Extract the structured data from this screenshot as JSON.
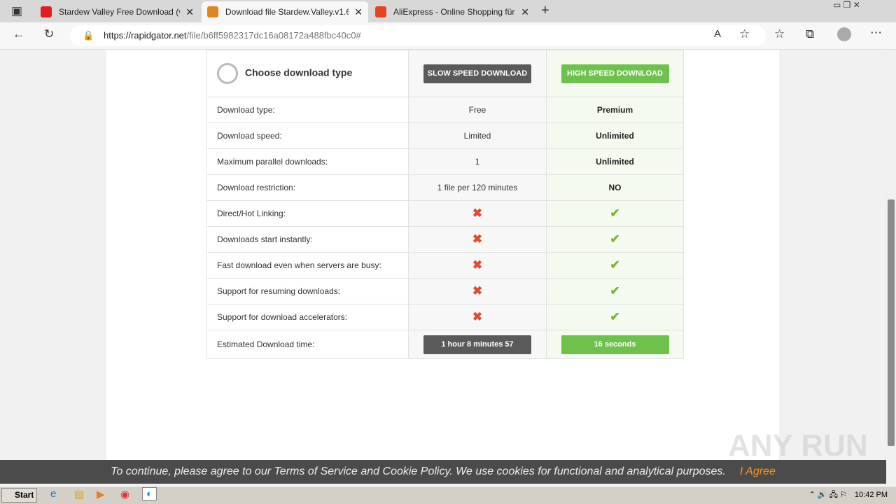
{
  "browser": {
    "tabs": [
      {
        "title": "Stardew Valley Free Download (v",
        "color": "#e02020"
      },
      {
        "title": "Download file Stardew.Valley.v1.6",
        "color": "#e0861f",
        "active": true
      },
      {
        "title": "AliExpress - Online Shopping für",
        "color": "#e8431e"
      }
    ],
    "url_domain": "https://rapidgator.net",
    "url_path": "/file/b6ff5982317dc16a08172a488fbc40c0#"
  },
  "table": {
    "header": "Choose download type",
    "slow_button": "SLOW SPEED DOWNLOAD",
    "fast_button": "HIGH SPEED DOWNLOAD",
    "rows": [
      {
        "label": "Download type:",
        "free": "Free",
        "premium": "Premium"
      },
      {
        "label": "Download speed:",
        "free": "Limited",
        "premium": "Unlimited"
      },
      {
        "label": "Maximum parallel downloads:",
        "free": "1",
        "premium": "Unlimited"
      },
      {
        "label": "Download restriction:",
        "free": "1 file per 120 minutes",
        "premium": "NO"
      },
      {
        "label": "Direct/Hot Linking:",
        "free": "✖",
        "premium": "✔"
      },
      {
        "label": "Downloads start instantly:",
        "free": "✖",
        "premium": "✔"
      },
      {
        "label": "Fast download even when servers are busy:",
        "free": "✖",
        "premium": "✔"
      },
      {
        "label": "Support for resuming downloads:",
        "free": "✖",
        "premium": "✔"
      },
      {
        "label": "Support for download accelerators:",
        "free": "✖",
        "premium": "✔"
      }
    ],
    "time_label": "Estimated Download time:",
    "slow_time": "1 hour 8 minutes 57",
    "fast_time": "16 seconds"
  },
  "cookie": {
    "text": "To continue, please agree to our Terms of Service and Cookie Policy. We use cookies for functional and analytical purposes.",
    "agree": "I Agree"
  },
  "taskbar": {
    "start": "Start",
    "clock": "10:42 PM"
  },
  "watermark": "ANY RUN"
}
